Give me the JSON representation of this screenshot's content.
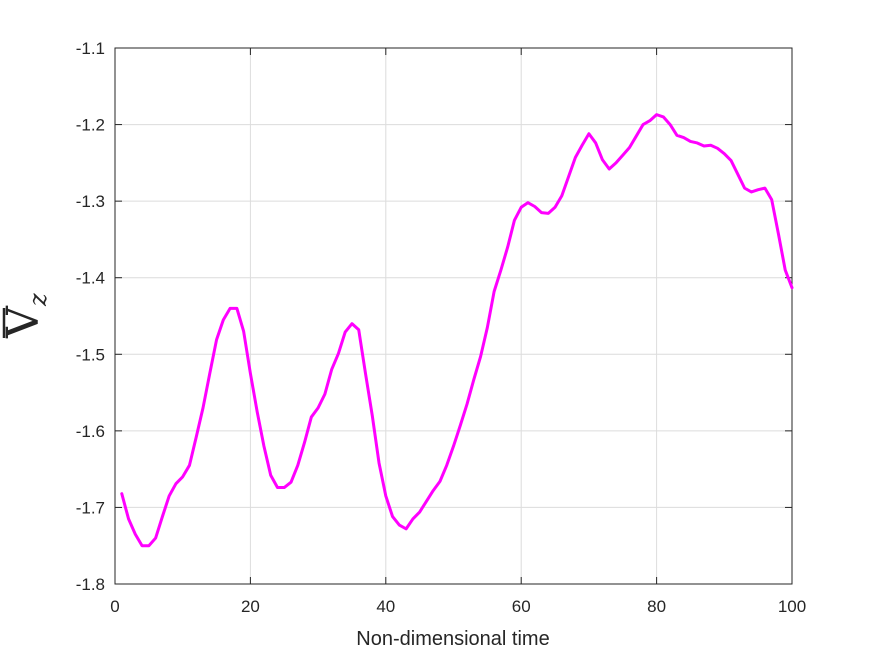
{
  "chart_data": {
    "type": "line",
    "title": "",
    "xlabel": "Non-dimensional time",
    "ylabel": {
      "main": "V",
      "sub": "z",
      "overline": true
    },
    "xlim": [
      0,
      100
    ],
    "ylim": [
      -1.8,
      -1.1
    ],
    "xticks": [
      0,
      20,
      40,
      60,
      80,
      100
    ],
    "yticks": [
      -1.8,
      -1.7,
      -1.6,
      -1.5,
      -1.4,
      -1.3,
      -1.2,
      -1.1
    ],
    "xtick_labels": [
      "0",
      "20",
      "40",
      "60",
      "80",
      "100"
    ],
    "ytick_labels": [
      "-1.8",
      "-1.7",
      "-1.6",
      "-1.5",
      "-1.4",
      "-1.3",
      "-1.2",
      "-1.1"
    ],
    "grid": true,
    "color": "#ff00ff",
    "series": [
      {
        "x": [
          1,
          2,
          3,
          4,
          5,
          6,
          7,
          8,
          9,
          10,
          11,
          12,
          13,
          14,
          15,
          16,
          17,
          18,
          19,
          20,
          21,
          22,
          23,
          24,
          25,
          26,
          27,
          28,
          29,
          30,
          31,
          32,
          33,
          34,
          35,
          36,
          37,
          38,
          39,
          40,
          41,
          42,
          43,
          44,
          45,
          46,
          47,
          48,
          49,
          50,
          51,
          52,
          53,
          54,
          55,
          56,
          57,
          58,
          59,
          60,
          61,
          62,
          63,
          64,
          65,
          66,
          67,
          68,
          69,
          70,
          71,
          72,
          73,
          74,
          75,
          76,
          77,
          78,
          79,
          80,
          81,
          82,
          83,
          84,
          85,
          86,
          87,
          88,
          89,
          90,
          91,
          92,
          93,
          94,
          95,
          96,
          97,
          98,
          99,
          100
        ],
        "y": [
          -1.682,
          -1.715,
          -1.735,
          -1.75,
          -1.75,
          -1.74,
          -1.712,
          -1.685,
          -1.669,
          -1.66,
          -1.645,
          -1.608,
          -1.57,
          -1.525,
          -1.481,
          -1.455,
          -1.44,
          -1.44,
          -1.47,
          -1.525,
          -1.575,
          -1.62,
          -1.658,
          -1.674,
          -1.674,
          -1.667,
          -1.645,
          -1.615,
          -1.582,
          -1.57,
          -1.552,
          -1.52,
          -1.499,
          -1.471,
          -1.46,
          -1.468,
          -1.525,
          -1.58,
          -1.642,
          -1.685,
          -1.712,
          -1.723,
          -1.728,
          -1.715,
          -1.706,
          -1.692,
          -1.678,
          -1.666,
          -1.645,
          -1.62,
          -1.593,
          -1.565,
          -1.533,
          -1.503,
          -1.465,
          -1.418,
          -1.39,
          -1.36,
          -1.325,
          -1.308,
          -1.302,
          -1.307,
          -1.315,
          -1.316,
          -1.308,
          -1.293,
          -1.268,
          -1.243,
          -1.227,
          -1.212,
          -1.224,
          -1.246,
          -1.258,
          -1.25,
          -1.24,
          -1.23,
          -1.215,
          -1.2,
          -1.195,
          -1.187,
          -1.19,
          -1.2,
          -1.214,
          -1.217,
          -1.222,
          -1.224,
          -1.228,
          -1.227,
          -1.231,
          -1.238,
          -1.247,
          -1.265,
          -1.283,
          -1.288,
          -1.285,
          -1.283,
          -1.298,
          -1.343,
          -1.39,
          -1.413
        ]
      }
    ]
  }
}
